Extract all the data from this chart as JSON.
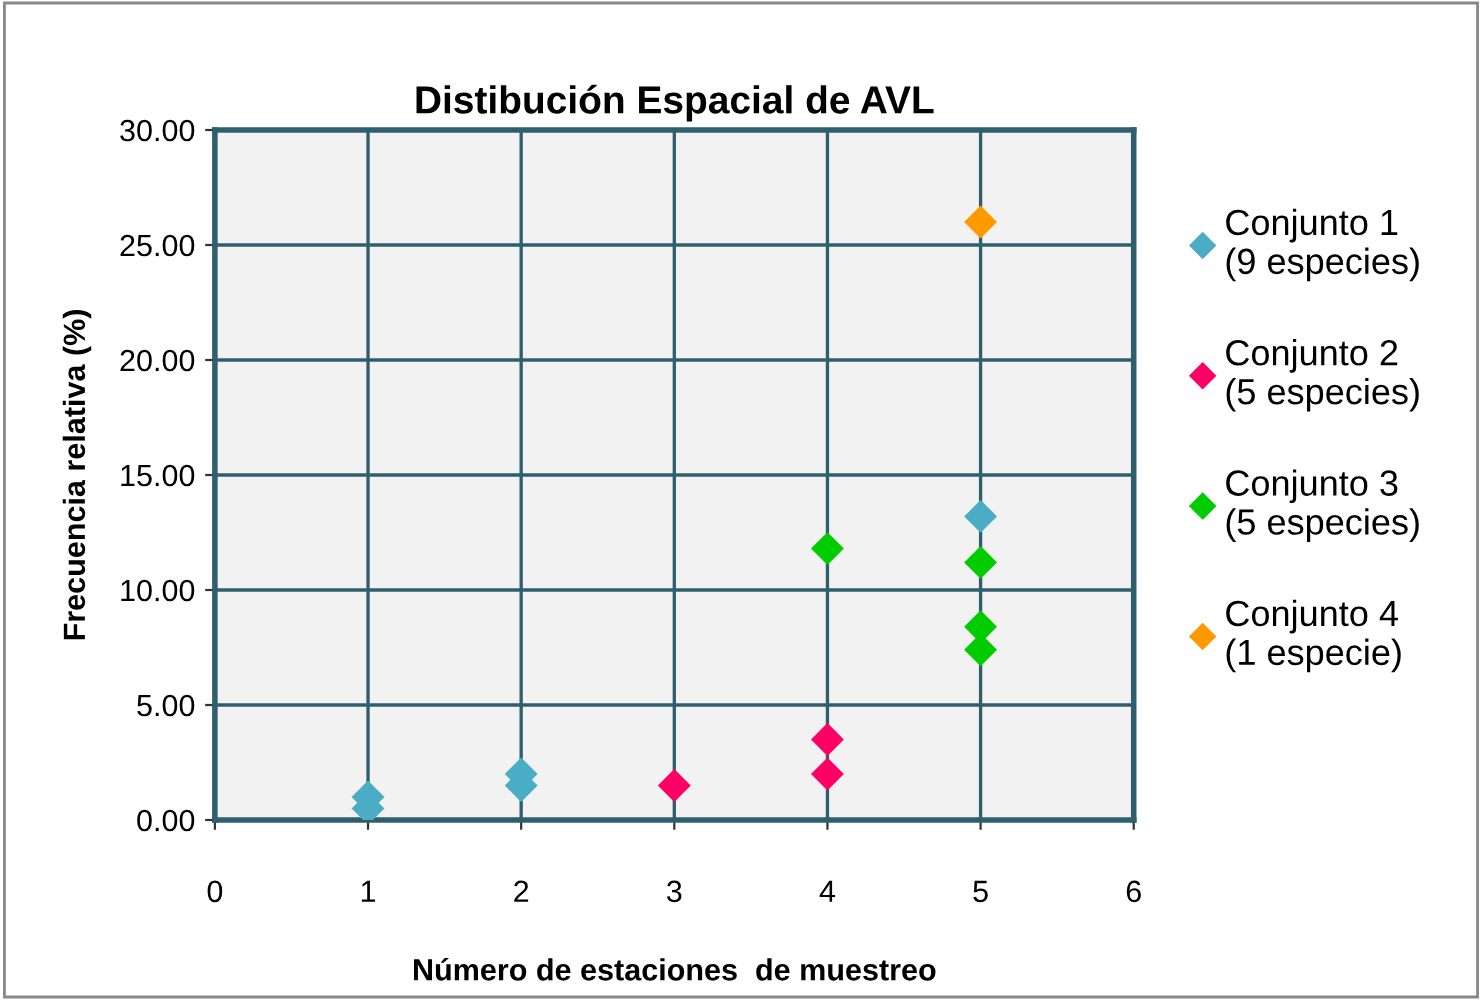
{
  "chart_data": {
    "type": "scatter",
    "title": "Distibución Espacial de AVL",
    "xlabel": "Número de estaciones  de muestreo",
    "ylabel": "Frecuencia relativa (%)",
    "xlim": [
      0,
      6
    ],
    "xticks": [
      0,
      1,
      2,
      3,
      4,
      5,
      6
    ],
    "ylim": [
      0,
      30
    ],
    "yticks": [
      {
        "value": 0,
        "label": "0.00"
      },
      {
        "value": 5,
        "label": "5.00"
      },
      {
        "value": 10,
        "label": "10.00"
      },
      {
        "value": 15,
        "label": "15.00"
      },
      {
        "value": 20,
        "label": "20.00"
      },
      {
        "value": 25,
        "label": "25.00"
      },
      {
        "value": 30,
        "label": "30.00"
      }
    ],
    "grid": true,
    "legend": "right",
    "marker": "diamond",
    "series": [
      {
        "name": "Conjunto 1\n(9 especies)",
        "color": "#4bacc6",
        "x": [
          1,
          1,
          2,
          2,
          5
        ],
        "values": [
          1.0,
          0.5,
          2.0,
          1.5,
          13.2
        ]
      },
      {
        "name": "Conjunto 2\n(5 especies)",
        "color": "#ff0066",
        "x": [
          3,
          4,
          4
        ],
        "values": [
          1.5,
          3.5,
          2.0
        ]
      },
      {
        "name": "Conjunto 3\n(5 especies)",
        "color": "#00cc00",
        "x": [
          4,
          5,
          5,
          5
        ],
        "values": [
          11.8,
          11.2,
          8.4,
          7.4
        ]
      },
      {
        "name": "Conjunto 4\n(1 especie)",
        "color": "#ff9900",
        "x": [
          5
        ],
        "values": [
          26.0
        ]
      }
    ]
  }
}
